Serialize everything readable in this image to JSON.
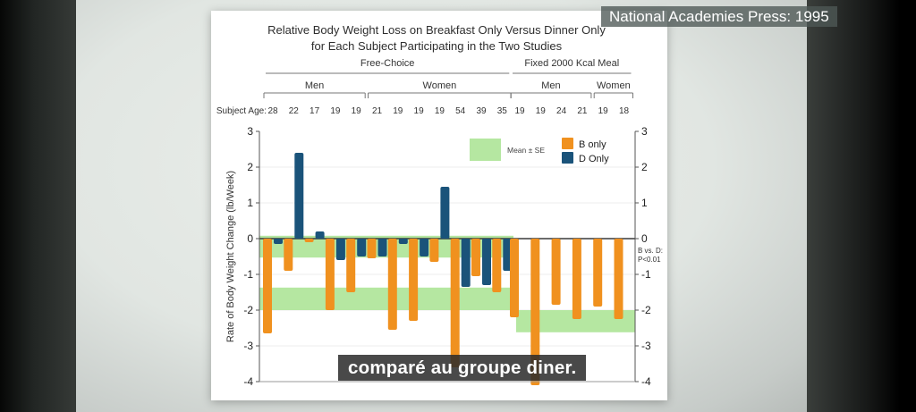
{
  "overlays": {
    "attribution": "National Academies Press: 1995",
    "subtitle": "comparé au groupe diner."
  },
  "chart_data": {
    "type": "bar",
    "title": [
      "Relative Body Weight Loss on Breakfast Only Versus Dinner Only",
      "for Each Subject Participating in the Two Studies"
    ],
    "ylabel": "Rate of Body Weight Change (lb/Week)",
    "ylim": [
      -4,
      3
    ],
    "yticks": [
      3,
      2,
      1,
      0,
      -1,
      -2,
      -3,
      -4
    ],
    "row_label": "Subject Age:",
    "legend": {
      "band_label": "Mean ± SE",
      "series_b": "B only",
      "series_d": "D Only"
    },
    "annotation_right": [
      "B vs. D:",
      "P<0.01"
    ],
    "colors": {
      "b_only": "#F0911F",
      "d_only": "#1A537A",
      "band": "#B5E7A1",
      "grid": "#ececec",
      "zero_line": "#3a3a3a",
      "axis": "#555555"
    },
    "grid": true,
    "legend_position": "top-center",
    "groups": [
      {
        "label": "Free-Choice",
        "mean_se_bands": [
          {
            "top": 0.08,
            "bottom": -0.53
          },
          {
            "top": -1.37,
            "bottom": -2.0
          }
        ],
        "subgroups": [
          {
            "label": "Men",
            "subjects": [
              {
                "age": 28,
                "B": -2.65,
                "D": -0.15
              },
              {
                "age": 22,
                "B": -0.9,
                "D": 2.4
              },
              {
                "age": 17,
                "B": -0.1,
                "D": 0.2
              },
              {
                "age": 19,
                "B": -2.0,
                "D": -0.6
              },
              {
                "age": 19,
                "B": -1.5,
                "D": -0.5
              }
            ]
          },
          {
            "label": "Women",
            "subjects": [
              {
                "age": 21,
                "B": -0.55,
                "D": -0.5
              },
              {
                "age": 19,
                "B": -2.55,
                "D": -0.15
              },
              {
                "age": 19,
                "B": -2.3,
                "D": -0.5
              },
              {
                "age": 19,
                "B": -0.65,
                "D": 1.45
              },
              {
                "age": 54,
                "B": -3.6,
                "D": -1.35
              },
              {
                "age": 39,
                "B": -1.05,
                "D": -1.3
              },
              {
                "age": 35,
                "B": -1.5,
                "D": -0.9
              }
            ]
          }
        ]
      },
      {
        "label": "Fixed 2000 Kcal Meal",
        "mean_se_bands": [
          {
            "top": -2.0,
            "bottom": -2.62
          }
        ],
        "subgroups": [
          {
            "label": "Men",
            "subjects": [
              {
                "age": 19,
                "B": -2.2,
                "D": null
              },
              {
                "age": 19,
                "B": -4.1,
                "D": null
              },
              {
                "age": 24,
                "B": -1.85,
                "D": null
              },
              {
                "age": 21,
                "B": -2.25,
                "D": null
              }
            ]
          },
          {
            "label": "Women",
            "subjects": [
              {
                "age": 19,
                "B": -1.9,
                "D": null
              },
              {
                "age": 18,
                "B": -2.25,
                "D": null
              }
            ]
          }
        ]
      }
    ]
  }
}
